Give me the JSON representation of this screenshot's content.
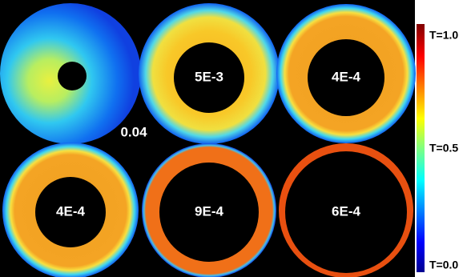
{
  "panels": [
    {
      "label": "0.04"
    },
    {
      "label": "5E-3"
    },
    {
      "label": "4E-4"
    },
    {
      "label": "4E-4"
    },
    {
      "label": "9E-4"
    },
    {
      "label": "6E-4"
    }
  ],
  "colorbar": {
    "labels": [
      "T=1.0",
      "T=0.5",
      "T=0.0"
    ]
  }
}
